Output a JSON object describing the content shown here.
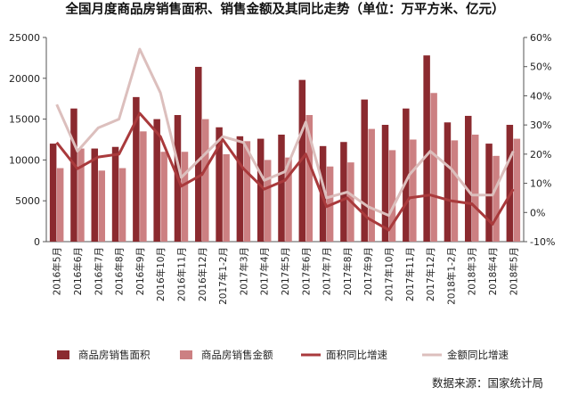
{
  "chart_data": {
    "type": "bar",
    "title": "全国月度商品房销售面积、销售金额及其同比走势（单位：万平方米、亿元）",
    "source": "数据来源：国家统计局",
    "categories": [
      "2016年5月",
      "2016年6月",
      "2016年7月",
      "2016年8月",
      "2016年9月",
      "2016年10月",
      "2016年11月",
      "2016年12月",
      "2017年1-2月",
      "2017年3月",
      "2017年4月",
      "2017年5月",
      "2017年6月",
      "2017年7月",
      "2017年8月",
      "2017年9月",
      "2017年10月",
      "2017年11月",
      "2017年12月",
      "2018年1-2月",
      "2018年3月",
      "2018年4月",
      "2018年5月"
    ],
    "left_axis": {
      "min": 0,
      "max": 25000,
      "ticks": [
        "0",
        "5000",
        "10000",
        "15000",
        "20000",
        "25000"
      ]
    },
    "right_axis": {
      "min": -10,
      "max": 60,
      "ticks": [
        "-10%",
        "0%",
        "10%",
        "20%",
        "30%",
        "40%",
        "50%",
        "60%"
      ]
    },
    "grid": false,
    "legend_position": "bottom",
    "series": [
      {
        "name": "商品房销售面积",
        "kind": "bar",
        "axis": "left",
        "color": "#8b2a2f",
        "values": [
          12000,
          16300,
          11400,
          11600,
          17700,
          15000,
          15500,
          21400,
          14000,
          12900,
          12600,
          13100,
          19800,
          11700,
          12200,
          17400,
          14300,
          16300,
          22800,
          14600,
          15400,
          12000,
          14300
        ]
      },
      {
        "name": "商品房销售金额",
        "kind": "bar",
        "axis": "left",
        "color": "#cc8082",
        "values": [
          9000,
          11400,
          8700,
          9000,
          13500,
          11000,
          11000,
          15000,
          10700,
          12300,
          10000,
          10300,
          15500,
          9200,
          9700,
          13800,
          11200,
          12500,
          18200,
          12400,
          13100,
          10500,
          12600
        ]
      },
      {
        "name": "面积同比增速",
        "kind": "line",
        "axis": "right",
        "color": "#a93a3c",
        "values": [
          24,
          15,
          19,
          20,
          34,
          26,
          9,
          13,
          25,
          15,
          8,
          11,
          20,
          2,
          5,
          -2,
          -6,
          5,
          6,
          4,
          3,
          -4,
          8
        ]
      },
      {
        "name": "金额同比增速",
        "kind": "line",
        "axis": "right",
        "color": "#dcbfbd",
        "values": [
          37,
          21,
          29,
          32,
          56,
          41,
          12,
          19,
          26,
          24,
          11,
          14,
          31,
          5,
          7,
          2,
          -1,
          13,
          21,
          15,
          6,
          6,
          21
        ]
      }
    ]
  }
}
